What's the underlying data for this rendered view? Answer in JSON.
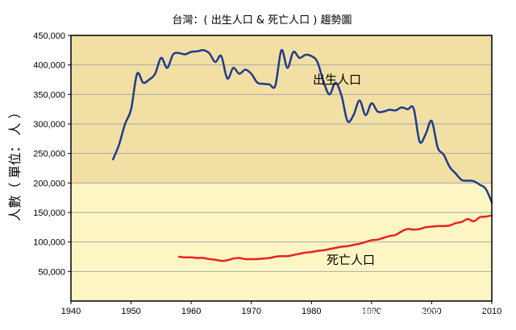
{
  "chart_data": {
    "type": "line",
    "title": "台灣：( 出生人口 & 死亡人口 ) 趨勢圖",
    "ylabel": "人數（ 單位： 人 ）",
    "xlabel": "",
    "xlim": [
      1940,
      2010
    ],
    "ylim": [
      0,
      450000
    ],
    "x_ticks": [
      1940,
      1950,
      1960,
      1970,
      1980,
      1990,
      2000,
      2010
    ],
    "x_tick_labels": [
      "1940",
      "1950",
      "1960",
      "1970",
      "1980",
      "1990",
      "2000",
      "2010"
    ],
    "y_ticks": [
      50000,
      100000,
      150000,
      200000,
      250000,
      300000,
      350000,
      400000,
      450000
    ],
    "y_tick_labels": [
      "50,000",
      "100,000",
      "150,000",
      "200,000",
      "250,000",
      "300,000",
      "350,000",
      "400,000",
      "450,000"
    ],
    "grid": true,
    "background_bands": [
      {
        "from": 0,
        "to": 200000,
        "color": "#fdf6c4"
      },
      {
        "from": 200000,
        "to": 450000,
        "color": "#f2dfa3"
      }
    ],
    "series": [
      {
        "name": "出生人口",
        "color": "#1f3c8c",
        "label_position": "upper-right",
        "x": [
          1947,
          1948,
          1949,
          1950,
          1951,
          1952,
          1953,
          1954,
          1955,
          1956,
          1957,
          1958,
          1959,
          1960,
          1961,
          1962,
          1963,
          1964,
          1965,
          1966,
          1967,
          1968,
          1969,
          1970,
          1971,
          1972,
          1973,
          1974,
          1975,
          1976,
          1977,
          1978,
          1979,
          1980,
          1981,
          1982,
          1983,
          1984,
          1985,
          1986,
          1987,
          1988,
          1989,
          1990,
          1991,
          1992,
          1993,
          1994,
          1995,
          1996,
          1997,
          1998,
          1999,
          2000,
          2001,
          2002,
          2003,
          2004,
          2005,
          2006,
          2007,
          2008,
          2009,
          2010
        ],
        "values": [
          240000,
          265000,
          300000,
          325000,
          385000,
          370000,
          375000,
          385000,
          412000,
          395000,
          418000,
          420000,
          418000,
          422000,
          423000,
          425000,
          420000,
          405000,
          415000,
          377000,
          395000,
          385000,
          392000,
          385000,
          370000,
          368000,
          367000,
          365000,
          425000,
          395000,
          422000,
          412000,
          417000,
          415000,
          405000,
          372000,
          350000,
          370000,
          348000,
          305000,
          315000,
          340000,
          315000,
          335000,
          321000,
          321000,
          324000,
          323000,
          328000,
          325000,
          326000,
          270000,
          283000,
          305000,
          260000,
          248000,
          227000,
          216000,
          205000,
          204000,
          203000,
          197000,
          190000,
          167000
        ]
      },
      {
        "name": "死亡人口",
        "color": "#e8231f",
        "label_position": "lower-center",
        "x": [
          1958,
          1959,
          1960,
          1961,
          1962,
          1963,
          1964,
          1965,
          1966,
          1967,
          1968,
          1969,
          1970,
          1971,
          1972,
          1973,
          1974,
          1975,
          1976,
          1977,
          1978,
          1979,
          1980,
          1981,
          1982,
          1983,
          1984,
          1985,
          1986,
          1987,
          1988,
          1989,
          1990,
          1991,
          1992,
          1993,
          1994,
          1995,
          1996,
          1997,
          1998,
          1999,
          2000,
          2001,
          2002,
          2003,
          2004,
          2005,
          2006,
          2007,
          2008,
          2009,
          2010
        ],
        "values": [
          75000,
          74000,
          74000,
          73000,
          73000,
          71000,
          70000,
          68000,
          69000,
          72000,
          73000,
          71000,
          71000,
          71000,
          72000,
          73000,
          75000,
          76000,
          76000,
          78000,
          80000,
          82000,
          83000,
          85000,
          86000,
          88000,
          90000,
          92000,
          93000,
          95000,
          97000,
          100000,
          103000,
          104000,
          107000,
          110000,
          112000,
          118000,
          122000,
          121000,
          122000,
          125000,
          126000,
          127000,
          127000,
          128000,
          132000,
          134000,
          139000,
          135000,
          142000,
          143000,
          145000
        ]
      }
    ]
  },
  "watermark": {
    "text": "雪球：超级鹿鼎公",
    "icon": "snowball-icon"
  }
}
